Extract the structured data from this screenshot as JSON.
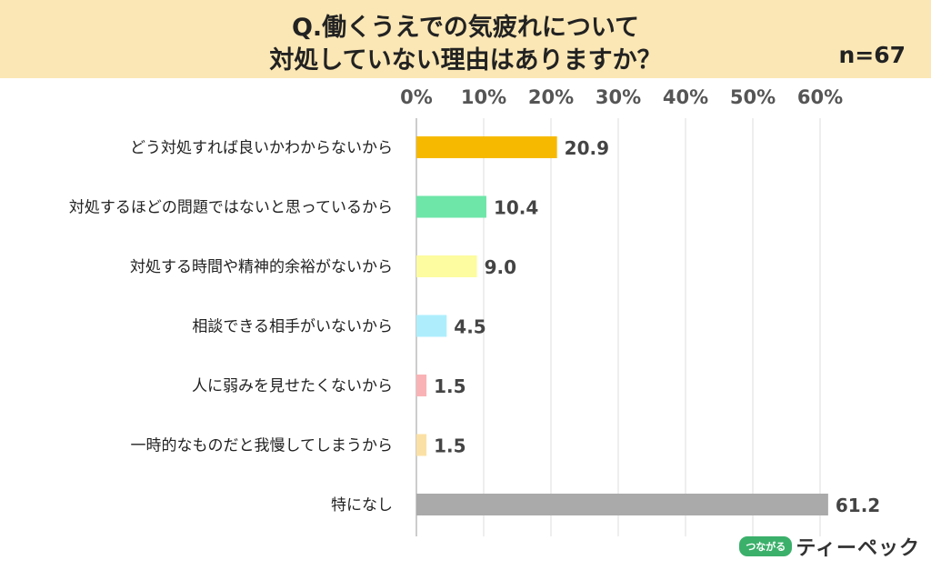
{
  "header": {
    "title_line1": "Q.働くうえでの気疲れについて",
    "title_line2": "対処していない理由はありますか？",
    "sample_size": "n=67"
  },
  "chart_data": {
    "type": "bar",
    "orientation": "horizontal",
    "title": "Q.働くうえでの気疲れについて対処していない理由はありますか？",
    "xlabel": "",
    "ylabel": "",
    "xlim": [
      0,
      60
    ],
    "ticks": [
      "0%",
      "10%",
      "20%",
      "30%",
      "40%",
      "50%",
      "60%"
    ],
    "tick_values": [
      0,
      10,
      20,
      30,
      40,
      50,
      60
    ],
    "categories": [
      "どう対処すれば良いかわからないから",
      "対処するほどの問題ではないと思っているから",
      "対処する時間や精神的余裕がないから",
      "相談できる相手がいないから",
      "人に弱みを見せたくないから",
      "一時的なものだと我慢してしまうから",
      "特になし"
    ],
    "values": [
      20.9,
      10.4,
      9.0,
      4.5,
      1.5,
      1.5,
      61.2
    ],
    "value_labels": [
      "20.9",
      "10.4",
      "9.0",
      "4.5",
      "1.5",
      "1.5",
      "61.2"
    ],
    "colors": [
      "#f7b900",
      "#6ee6a8",
      "#fdfca0",
      "#aeeefc",
      "#f9b3b6",
      "#fbe0a6",
      "#aaaaaa"
    ],
    "grid": true
  },
  "logo": {
    "badge": "つながる",
    "text": "ティーペック"
  }
}
